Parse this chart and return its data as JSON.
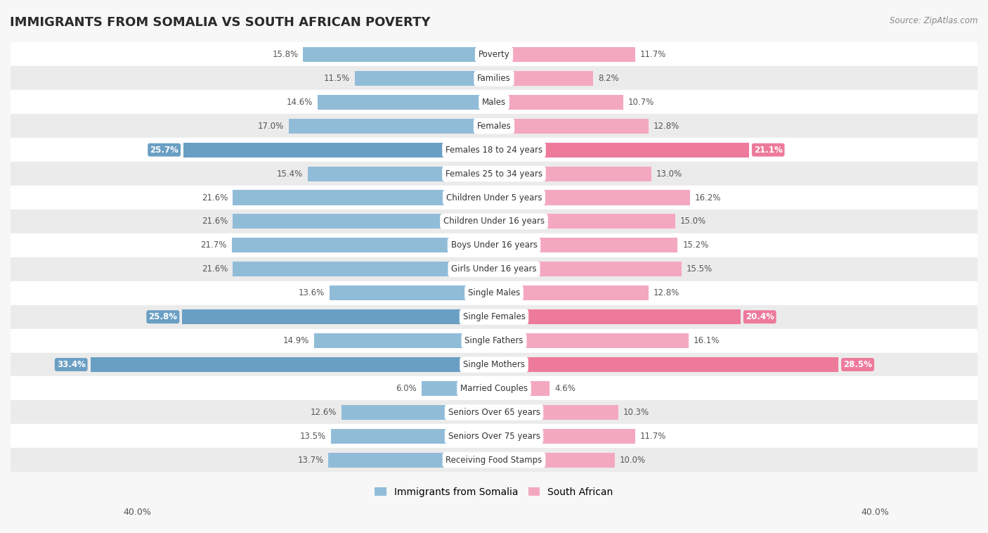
{
  "title": "IMMIGRANTS FROM SOMALIA VS SOUTH AFRICAN POVERTY",
  "source": "Source: ZipAtlas.com",
  "categories": [
    "Poverty",
    "Families",
    "Males",
    "Females",
    "Females 18 to 24 years",
    "Females 25 to 34 years",
    "Children Under 5 years",
    "Children Under 16 years",
    "Boys Under 16 years",
    "Girls Under 16 years",
    "Single Males",
    "Single Females",
    "Single Fathers",
    "Single Mothers",
    "Married Couples",
    "Seniors Over 65 years",
    "Seniors Over 75 years",
    "Receiving Food Stamps"
  ],
  "somalia_values": [
    15.8,
    11.5,
    14.6,
    17.0,
    25.7,
    15.4,
    21.6,
    21.6,
    21.7,
    21.6,
    13.6,
    25.8,
    14.9,
    33.4,
    6.0,
    12.6,
    13.5,
    13.7
  ],
  "south_african_values": [
    11.7,
    8.2,
    10.7,
    12.8,
    21.1,
    13.0,
    16.2,
    15.0,
    15.2,
    15.5,
    12.8,
    20.4,
    16.1,
    28.5,
    4.6,
    10.3,
    11.7,
    10.0
  ],
  "somalia_color": "#91bcd8",
  "south_african_color": "#f4a8bf",
  "somalia_highlight_color": "#6a9fc4",
  "south_african_highlight_color": "#ee7a9b",
  "highlight_rows": [
    4,
    11,
    13
  ],
  "xlim": 40.0,
  "bar_height": 0.62,
  "background_color": "#f7f7f7",
  "row_bg_even": "#ffffff",
  "row_bg_odd": "#ebebeb",
  "legend_somalia": "Immigrants from Somalia",
  "legend_south_african": "South African",
  "title_fontsize": 13,
  "label_fontsize": 8.5,
  "cat_fontsize": 8.5
}
